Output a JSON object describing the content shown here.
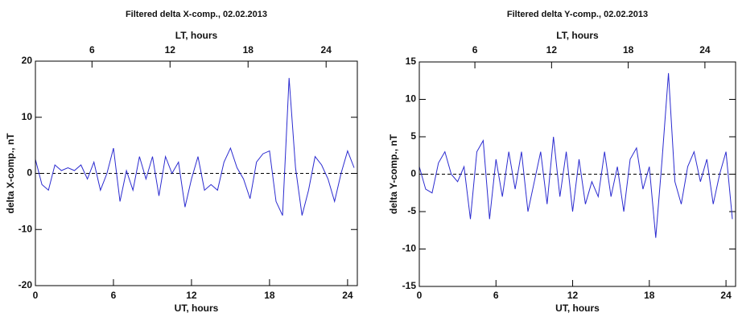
{
  "chart_data": [
    {
      "type": "line",
      "title": "Filtered delta X-comp., 02.02.2013",
      "xlabel": "UT, hours",
      "x2label": "LT, hours",
      "ylabel": "delta X-comp., nT",
      "xlim": [
        0,
        24.75
      ],
      "xticks": [
        0,
        6,
        12,
        18,
        24
      ],
      "x2lim": [
        1.65,
        26.4
      ],
      "x2ticks": [
        6,
        12,
        18,
        24
      ],
      "ylim": [
        -20,
        20
      ],
      "yticks": [
        -20,
        -10,
        0,
        10,
        20
      ],
      "series": [
        {
          "name": "delta X",
          "color": "#2b2bd0",
          "x": [
            0,
            0.5,
            1,
            1.5,
            2,
            2.5,
            3,
            3.5,
            4,
            4.5,
            5,
            5.5,
            6,
            6.5,
            7,
            7.5,
            8,
            8.5,
            9,
            9.5,
            10,
            10.5,
            11,
            11.5,
            12,
            12.5,
            13,
            13.5,
            14,
            14.5,
            15,
            15.5,
            16,
            16.5,
            17,
            17.5,
            18,
            18.5,
            19,
            19.5,
            20,
            20.5,
            21,
            21.5,
            22,
            22.5,
            23,
            23.5,
            24,
            24.5
          ],
          "values": [
            2.5,
            -2,
            -3,
            1.5,
            0.5,
            1,
            0.5,
            1.5,
            -1,
            2,
            -3,
            0,
            4.5,
            -5,
            0.5,
            -3,
            3,
            -1,
            3,
            -4,
            3,
            0,
            2,
            -6,
            -1,
            3,
            -3,
            -2,
            -3,
            2,
            4.5,
            1,
            -1,
            -4.5,
            2,
            3.5,
            4,
            -5,
            -7.5,
            17,
            1,
            -7.5,
            -3,
            3,
            1.5,
            -1,
            -5,
            0,
            4,
            1
          ]
        }
      ]
    },
    {
      "type": "line",
      "title": "Filtered delta Y-comp., 02.02.2013",
      "xlabel": "UT, hours",
      "x2label": "LT, hours",
      "ylabel": "delta Y-comp., nT",
      "xlim": [
        0,
        24.75
      ],
      "xticks": [
        0,
        6,
        12,
        18,
        24
      ],
      "x2lim": [
        1.65,
        26.4
      ],
      "x2ticks": [
        6,
        12,
        18,
        24
      ],
      "ylim": [
        -15,
        15
      ],
      "yticks": [
        -15,
        -10,
        -5,
        0,
        5,
        10,
        15
      ],
      "series": [
        {
          "name": "delta Y",
          "color": "#2b2bd0",
          "x": [
            0,
            0.5,
            1,
            1.5,
            2,
            2.5,
            3,
            3.5,
            4,
            4.5,
            5,
            5.5,
            6,
            6.5,
            7,
            7.5,
            8,
            8.5,
            9,
            9.5,
            10,
            10.5,
            11,
            11.5,
            12,
            12.5,
            13,
            13.5,
            14,
            14.5,
            15,
            15.5,
            16,
            16.5,
            17,
            17.5,
            18,
            18.5,
            19,
            19.5,
            20,
            20.5,
            21,
            21.5,
            22,
            22.5,
            23,
            23.5,
            24,
            24.5
          ],
          "values": [
            1,
            -2,
            -2.5,
            1.5,
            3,
            0,
            -1,
            1,
            -6,
            3,
            4.5,
            -6,
            2,
            -3,
            3,
            -2,
            3,
            -5,
            -1,
            3,
            -4,
            5,
            -3,
            3,
            -5,
            2,
            -4,
            -1,
            -3,
            3,
            -3,
            1,
            -5,
            2,
            3.5,
            -2,
            1,
            -8.5,
            2,
            13.5,
            -1,
            -4,
            1,
            3,
            -1,
            2,
            -4,
            0,
            3,
            -6
          ]
        }
      ]
    }
  ]
}
